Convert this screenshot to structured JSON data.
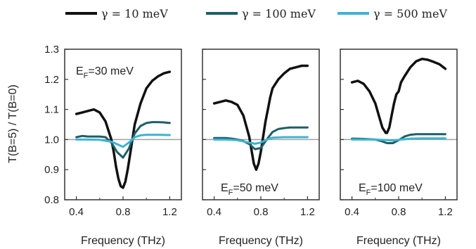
{
  "legend": [
    {
      "label": "γ = 10 meV",
      "color": "#111111"
    },
    {
      "label": "γ = 100 meV",
      "color": "#1d5f68"
    },
    {
      "label": "γ = 500 meV",
      "color": "#3fb3d0"
    }
  ],
  "ylabel": "T(B=5) / T(B=0)",
  "reference_line": {
    "y": 1.0,
    "color": "#a0a0a0"
  },
  "chart_data": [
    {
      "type": "line",
      "xlabel": "Frequency (THz)",
      "xticks": [
        "0.4",
        "0.8",
        "1.2"
      ],
      "ylabel": "T(B=5) / T(B=0)",
      "yticks": [
        "0.8",
        "0.9",
        "1.0",
        "1.1",
        "1.2",
        "1.3"
      ],
      "xlim": [
        0.3,
        1.3
      ],
      "ylim": [
        0.8,
        1.3
      ],
      "annotation": {
        "prefix": "E",
        "sub": "F",
        "suffix": "=30 meV",
        "position": "top-left"
      },
      "series": [
        {
          "name": "γ = 10 meV",
          "color": "#111111",
          "x": [
            0.4,
            0.45,
            0.5,
            0.55,
            0.6,
            0.65,
            0.7,
            0.72,
            0.74,
            0.76,
            0.78,
            0.8,
            0.82,
            0.84,
            0.86,
            0.88,
            0.9,
            0.95,
            1.0,
            1.05,
            1.1,
            1.15,
            1.2
          ],
          "y": [
            1.085,
            1.09,
            1.095,
            1.1,
            1.09,
            1.06,
            1.0,
            0.96,
            0.91,
            0.87,
            0.845,
            0.84,
            0.86,
            0.9,
            0.95,
            1.0,
            1.05,
            1.12,
            1.17,
            1.195,
            1.21,
            1.22,
            1.225
          ]
        },
        {
          "name": "γ = 100 meV",
          "color": "#1d5f68",
          "x": [
            0.4,
            0.45,
            0.5,
            0.55,
            0.6,
            0.65,
            0.7,
            0.75,
            0.8,
            0.85,
            0.9,
            0.95,
            1.0,
            1.05,
            1.1,
            1.15,
            1.2
          ],
          "y": [
            1.008,
            1.012,
            1.01,
            1.01,
            1.01,
            1.008,
            0.99,
            0.958,
            0.94,
            0.97,
            1.02,
            1.045,
            1.055,
            1.058,
            1.058,
            1.057,
            1.055
          ]
        },
        {
          "name": "γ = 500 meV",
          "color": "#3fb3d0",
          "x": [
            0.4,
            0.5,
            0.6,
            0.7,
            0.8,
            0.85,
            0.9,
            0.95,
            1.0,
            1.1,
            1.2
          ],
          "y": [
            1.0,
            1.0,
            0.999,
            0.993,
            0.976,
            0.99,
            1.008,
            1.014,
            1.016,
            1.016,
            1.015
          ]
        }
      ]
    },
    {
      "type": "line",
      "xlabel": "Frequency (THz)",
      "xticks": [
        "0.4",
        "0.8",
        "1.2"
      ],
      "xlim": [
        0.3,
        1.3
      ],
      "ylim": [
        0.8,
        1.3
      ],
      "annotation": {
        "prefix": "E",
        "sub": "F",
        "suffix": "=50 meV",
        "position": "bottom-center"
      },
      "series": [
        {
          "name": "γ = 10 meV",
          "color": "#111111",
          "x": [
            0.4,
            0.45,
            0.5,
            0.55,
            0.6,
            0.65,
            0.7,
            0.72,
            0.74,
            0.76,
            0.78,
            0.8,
            0.82,
            0.84,
            0.86,
            0.88,
            0.9,
            0.95,
            1.0,
            1.05,
            1.1,
            1.15,
            1.2
          ],
          "y": [
            1.12,
            1.125,
            1.13,
            1.125,
            1.115,
            1.08,
            1.01,
            0.965,
            0.92,
            0.9,
            0.92,
            0.96,
            1.01,
            1.06,
            1.1,
            1.14,
            1.17,
            1.2,
            1.22,
            1.235,
            1.24,
            1.245,
            1.245
          ]
        },
        {
          "name": "γ = 100 meV",
          "color": "#1d5f68",
          "x": [
            0.4,
            0.45,
            0.5,
            0.55,
            0.6,
            0.65,
            0.7,
            0.75,
            0.8,
            0.85,
            0.9,
            0.95,
            1.0,
            1.05,
            1.1,
            1.15,
            1.2
          ],
          "y": [
            1.005,
            1.005,
            1.005,
            1.003,
            1.0,
            0.995,
            0.985,
            0.968,
            0.972,
            1.0,
            1.025,
            1.035,
            1.038,
            1.04,
            1.04,
            1.04,
            1.04
          ]
        },
        {
          "name": "γ = 500 meV",
          "color": "#3fb3d0",
          "x": [
            0.4,
            0.5,
            0.6,
            0.7,
            0.75,
            0.8,
            0.85,
            0.9,
            1.0,
            1.1,
            1.2
          ],
          "y": [
            1.0,
            1.0,
            0.998,
            0.99,
            0.986,
            0.99,
            1.0,
            1.006,
            1.008,
            1.008,
            1.008
          ]
        }
      ]
    },
    {
      "type": "line",
      "xlabel": "Frequency (THz)",
      "xticks": [
        "0.4",
        "0.8",
        "1.2"
      ],
      "xlim": [
        0.3,
        1.3
      ],
      "ylim": [
        0.8,
        1.3
      ],
      "annotation": {
        "prefix": "E",
        "sub": "F",
        "suffix": "=100 meV",
        "position": "bottom-center"
      },
      "series": [
        {
          "name": "γ = 10 meV",
          "color": "#111111",
          "x": [
            0.4,
            0.45,
            0.5,
            0.55,
            0.6,
            0.63,
            0.66,
            0.69,
            0.7,
            0.72,
            0.74,
            0.76,
            0.78,
            0.8,
            0.82,
            0.85,
            0.9,
            0.95,
            1.0,
            1.05,
            1.1,
            1.15,
            1.2
          ],
          "y": [
            1.19,
            1.195,
            1.185,
            1.16,
            1.12,
            1.08,
            1.04,
            1.022,
            1.022,
            1.04,
            1.08,
            1.12,
            1.15,
            1.16,
            1.19,
            1.21,
            1.24,
            1.26,
            1.268,
            1.265,
            1.258,
            1.25,
            1.235
          ]
        },
        {
          "name": "γ = 100 meV",
          "color": "#1d5f68",
          "x": [
            0.4,
            0.5,
            0.6,
            0.65,
            0.7,
            0.75,
            0.8,
            0.85,
            0.9,
            0.95,
            1.0,
            1.1,
            1.2
          ],
          "y": [
            1.003,
            1.002,
            1.0,
            0.995,
            0.988,
            0.988,
            0.998,
            1.01,
            1.016,
            1.018,
            1.018,
            1.018,
            1.018
          ]
        },
        {
          "name": "γ = 500 meV",
          "color": "#3fb3d0",
          "x": [
            0.4,
            0.5,
            0.6,
            0.7,
            0.75,
            0.8,
            0.9,
            1.0,
            1.1,
            1.2
          ],
          "y": [
            1.0,
            1.0,
            1.0,
            0.998,
            0.997,
            0.999,
            1.003,
            1.004,
            1.004,
            1.004
          ]
        }
      ]
    }
  ]
}
